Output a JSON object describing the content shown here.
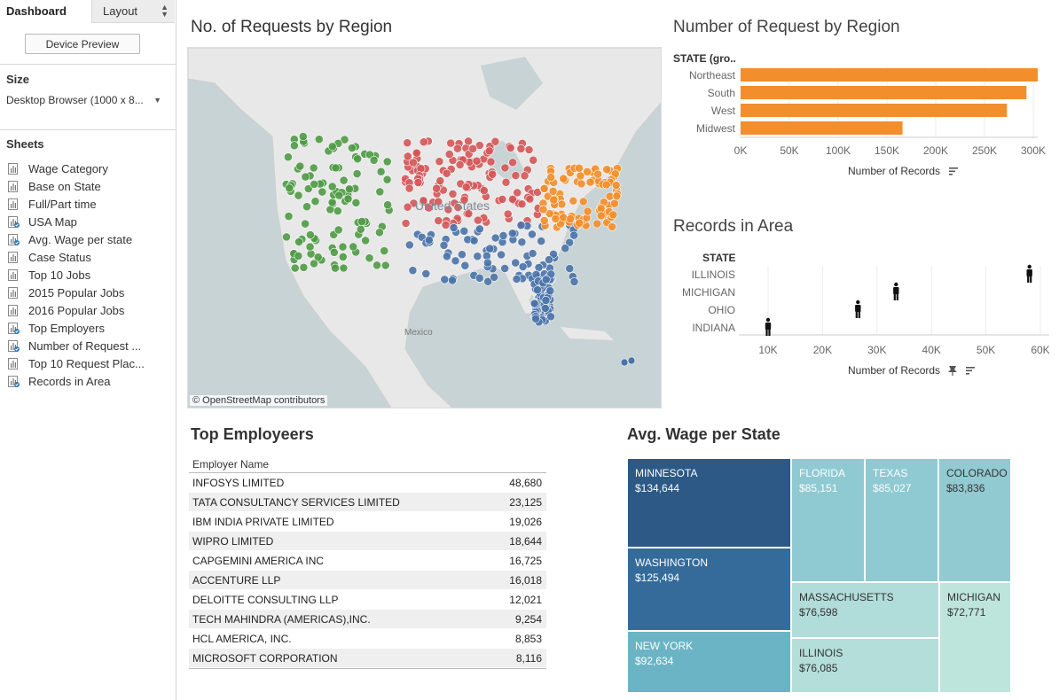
{
  "left_panel": {
    "tab_dashboard": "Dashboard",
    "tab_layout": "Layout",
    "device_preview": "Device Preview",
    "size_title": "Size",
    "size_value": "Desktop Browser (1000 x 8...",
    "sheets_title": "Sheets",
    "sheets": [
      {
        "label": "Wage Category",
        "used": false
      },
      {
        "label": "Base on State",
        "used": false
      },
      {
        "label": "Full/Part time",
        "used": false
      },
      {
        "label": "USA Map",
        "used": true
      },
      {
        "label": "Avg. Wage per state",
        "used": true
      },
      {
        "label": "Case Status",
        "used": false
      },
      {
        "label": "Top 10 Jobs",
        "used": false
      },
      {
        "label": "2015 Popular Jobs",
        "used": false
      },
      {
        "label": "2016 Popular Jobs",
        "used": false
      },
      {
        "label": "Top Employers",
        "used": true
      },
      {
        "label": "Number of Request ...",
        "used": true
      },
      {
        "label": "Top 10 Request Plac...",
        "used": false
      },
      {
        "label": "Records in Area",
        "used": true
      }
    ]
  },
  "map": {
    "title": "No. of Requests by Region",
    "label_us": "United States",
    "label_mexico": "Mexico",
    "attribution": "© OpenStreetMap contributors",
    "colors": {
      "West": "#4f9a45",
      "Midwest": "#d45658",
      "South": "#4a73a8",
      "Northeast": "#f28e2b",
      "land": "#e8e8e8",
      "water": "#c8d3d5"
    }
  },
  "bar_chart": {
    "title": "Number of Request by Region",
    "header": "STATE (gro..",
    "xlabel": "Number of Records",
    "color": "#f28e2b",
    "chart_data": {
      "type": "bar",
      "categories": [
        "Northeast",
        "South",
        "West",
        "Midwest"
      ],
      "values": [
        305000,
        293000,
        273000,
        166000
      ],
      "xlim": [
        0,
        300000
      ],
      "ticks": [
        "0K",
        "50K",
        "100K",
        "150K",
        "200K",
        "250K",
        "300K"
      ]
    }
  },
  "records_chart": {
    "title": "Records in Area",
    "header": "STATE",
    "xlabel": "Number of Records",
    "chart_data": {
      "type": "scatter",
      "categories": [
        "ILLINOIS",
        "MICHIGAN",
        "OHIO",
        "INDIANA"
      ],
      "values": [
        58000,
        33500,
        26500,
        10000
      ],
      "xlim": [
        10000,
        60000
      ],
      "ticks": [
        "10K",
        "20K",
        "30K",
        "40K",
        "50K",
        "60K"
      ],
      "marker": "person-icon"
    }
  },
  "employers": {
    "title": "Top Employeers",
    "column_header": "Employer Name",
    "rows": [
      {
        "name": "INFOSYS LIMITED",
        "value": "48,680"
      },
      {
        "name": "TATA CONSULTANCY SERVICES LIMITED",
        "value": "23,125"
      },
      {
        "name": "IBM INDIA PRIVATE LIMITED",
        "value": "19,026"
      },
      {
        "name": "WIPRO LIMITED",
        "value": "18,644"
      },
      {
        "name": "CAPGEMINI AMERICA INC",
        "value": "16,725"
      },
      {
        "name": "ACCENTURE LLP",
        "value": "16,018"
      },
      {
        "name": "DELOITTE CONSULTING LLP",
        "value": "12,021"
      },
      {
        "name": "TECH MAHINDRA (AMERICAS),INC.",
        "value": "9,254"
      },
      {
        "name": "HCL AMERICA, INC.",
        "value": "8,853"
      },
      {
        "name": "MICROSOFT CORPORATION",
        "value": "8,116"
      }
    ]
  },
  "treemap": {
    "title": "Avg. Wage per State",
    "cells": [
      {
        "state": "MINNESOTA",
        "wage": "$134,644",
        "color": "#2c5985",
        "text": "#ffffff"
      },
      {
        "state": "WASHINGTON",
        "wage": "$125,494",
        "color": "#346b9b",
        "text": "#ffffff"
      },
      {
        "state": "NEW YORK",
        "wage": "$92,634",
        "color": "#6bb4c5",
        "text": "#ffffff"
      },
      {
        "state": "FLORIDA",
        "wage": "$85,151",
        "color": "#8fc9d1",
        "text": "#ffffff"
      },
      {
        "state": "TEXAS",
        "wage": "$85,027",
        "color": "#8fc9d1",
        "text": "#ffffff"
      },
      {
        "state": "COLORADO",
        "wage": "$83,836",
        "color": "#92cad2",
        "text": "#333333"
      },
      {
        "state": "MASSACHUSETTS",
        "wage": "$76,598",
        "color": "#b0dcd9",
        "text": "#333333"
      },
      {
        "state": "ILLINOIS",
        "wage": "$76,085",
        "color": "#b4ded9",
        "text": "#333333"
      },
      {
        "state": "MICHIGAN",
        "wage": "$72,771",
        "color": "#bde5dc",
        "text": "#333333"
      }
    ]
  }
}
